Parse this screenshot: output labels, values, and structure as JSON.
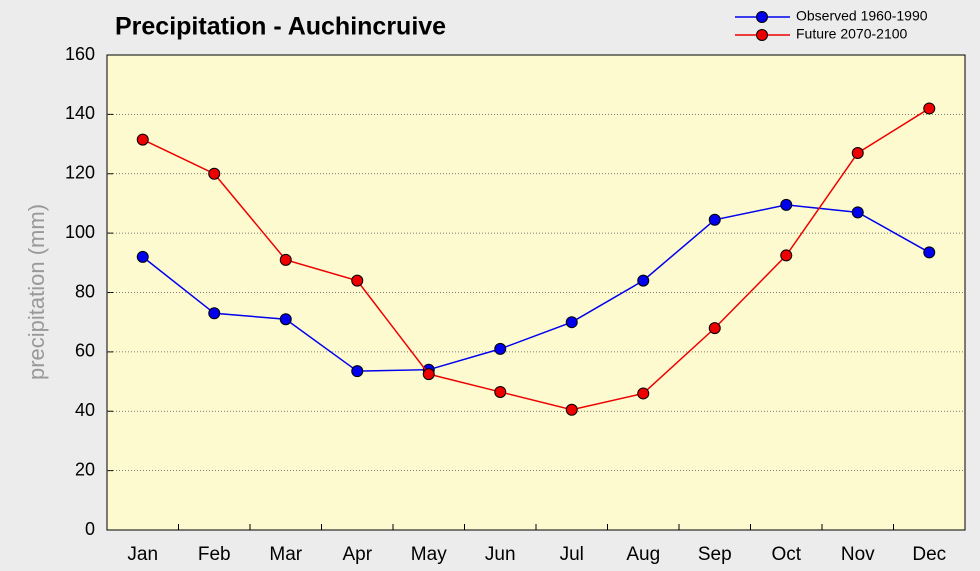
{
  "chart_data": {
    "type": "line",
    "title": "Precipitation - Auchincruive",
    "y_label": "precipitation (mm)",
    "categories": [
      "Jan",
      "Feb",
      "Mar",
      "Apr",
      "May",
      "Jun",
      "Jul",
      "Aug",
      "Sep",
      "Oct",
      "Nov",
      "Dec"
    ],
    "series": [
      {
        "name": "Observed 1960-1990",
        "color": "#0000ee",
        "values": [
          92,
          73,
          71,
          53.5,
          54,
          61,
          70,
          84,
          104.5,
          109.5,
          107,
          93.5
        ]
      },
      {
        "name": "Future 2070-2100",
        "color": "#ee0000",
        "values": [
          131.5,
          120,
          91,
          84,
          52.5,
          46.5,
          40.5,
          46,
          68,
          92.5,
          127,
          142
        ]
      }
    ],
    "ylim": [
      0,
      160
    ],
    "yticks": [
      0,
      20,
      40,
      60,
      80,
      100,
      120,
      140,
      160
    ],
    "grid": true,
    "legend": "top-right"
  }
}
